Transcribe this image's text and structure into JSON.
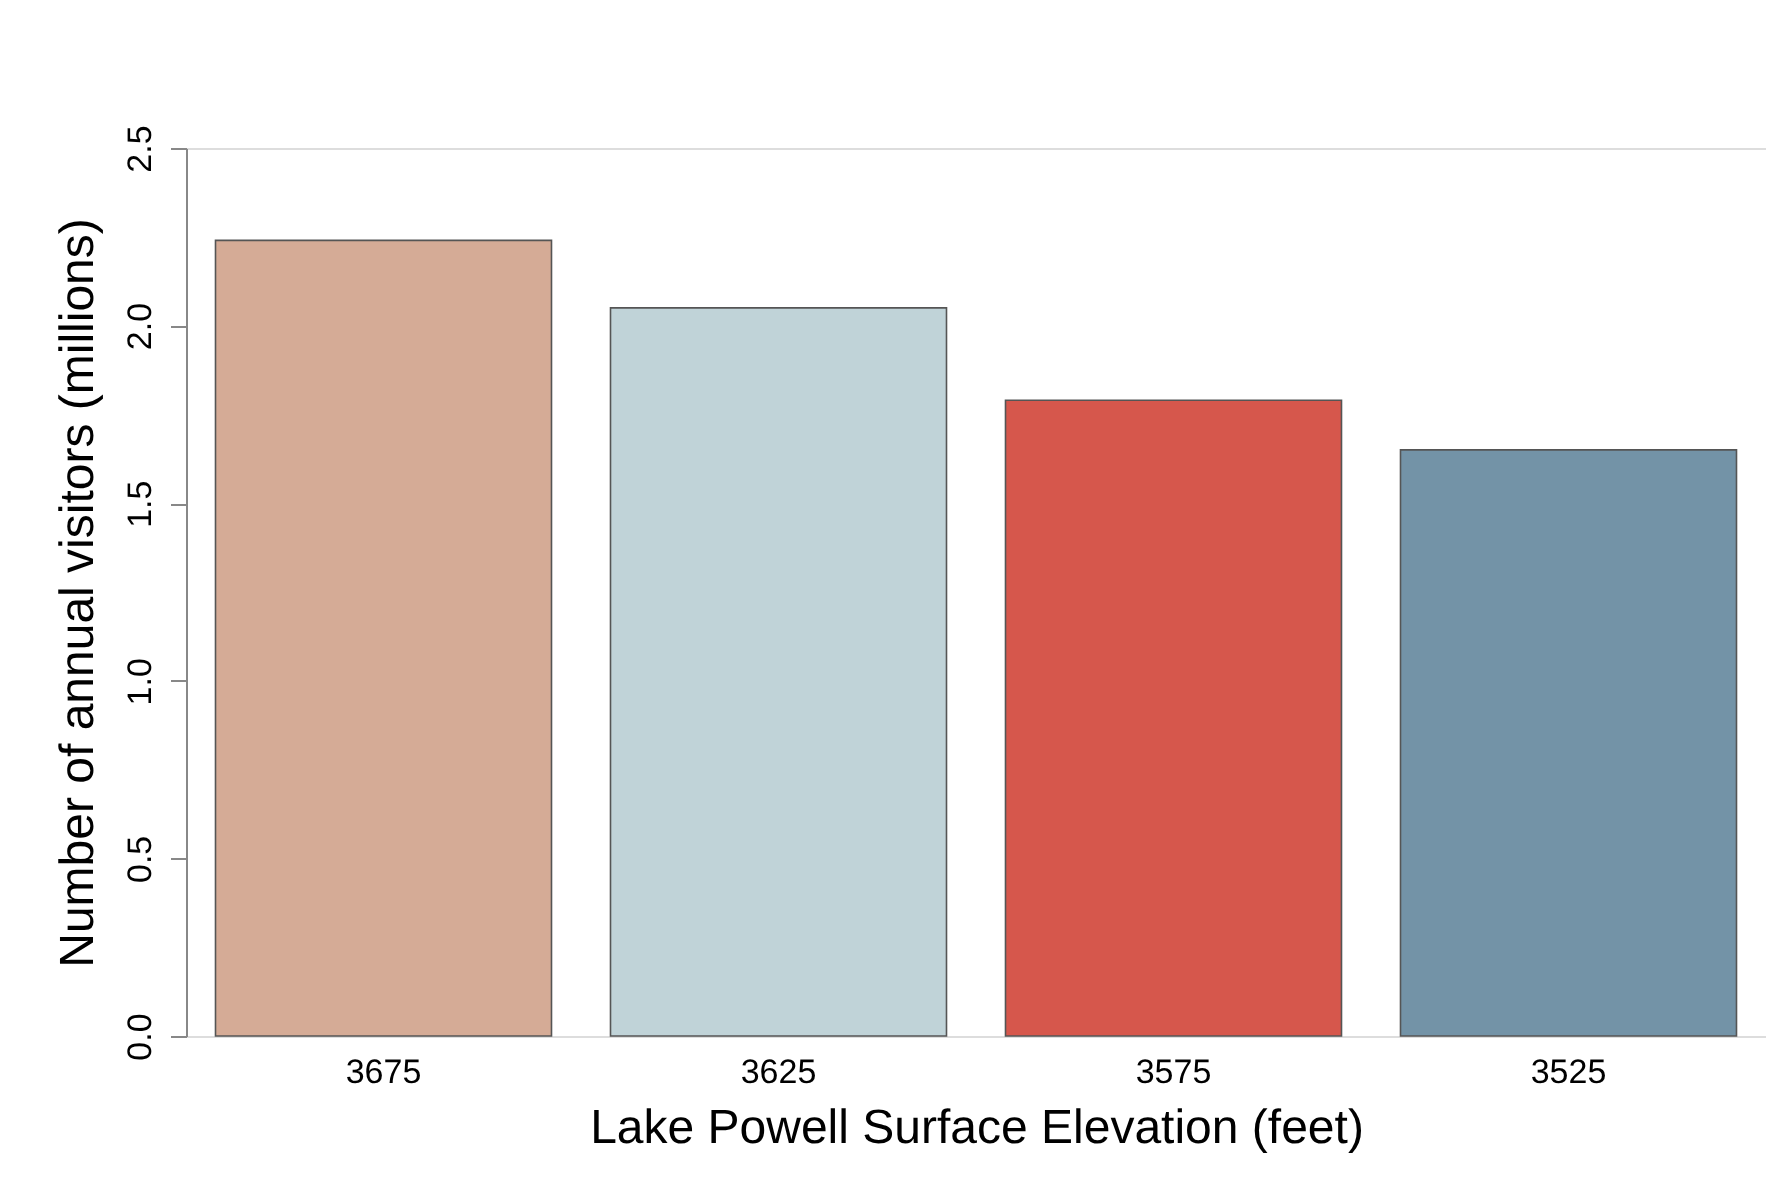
{
  "chart_data": {
    "type": "bar",
    "xlabel": "Lake Powell Surface Elevation (feet)",
    "ylabel": "Number of annual visitors (millions)",
    "categories": [
      "3675",
      "3625",
      "3575",
      "3525"
    ],
    "values": [
      2.24,
      2.05,
      1.79,
      1.65
    ],
    "colors": [
      "#d5ab96",
      "#c0d3d8",
      "#d6574c",
      "#7393a7"
    ],
    "ylim": [
      0,
      2.5
    ],
    "yticks": [
      {
        "value": 0,
        "label": "0.0"
      },
      0.5,
      {
        "value": 1,
        "label": "1.0"
      },
      1.5,
      {
        "value": 2,
        "label": "2.0"
      },
      2.5
    ],
    "grid": false
  }
}
